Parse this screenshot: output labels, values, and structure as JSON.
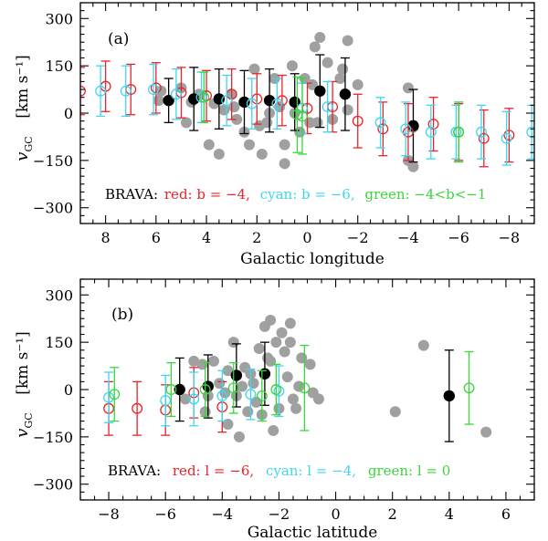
{
  "colors": {
    "red": "#e8242a",
    "cyan": "#3fd6f0",
    "green": "#3ad63a",
    "black": "#000000",
    "gray": "#a0a0a0"
  },
  "chart_data": [
    {
      "type": "scatter",
      "panel_label": "(a)",
      "xlabel": "Galactic longitude",
      "ylabel_main": "v",
      "ylabel_sub": "GC",
      "ylabel_units": "[km s⁻¹]",
      "xlim": [
        9,
        -9
      ],
      "ylim": [
        -350,
        350
      ],
      "xticks": [
        8,
        6,
        4,
        2,
        0,
        -2,
        -4,
        -6,
        -8
      ],
      "xticklabels": [
        "8",
        "6",
        "4",
        "2",
        "0",
        "−2",
        "−4",
        "−6",
        "−8"
      ],
      "yticks": [
        300,
        150,
        0,
        -150,
        -300
      ],
      "yticklabels": [
        "300",
        "150",
        "0",
        "−150",
        "−300"
      ],
      "legend_prefix": "BRAVA:",
      "legend_items": [
        {
          "color": "red",
          "text": "red: b = −4,"
        },
        {
          "color": "cyan",
          "text": "cyan: b = −6,"
        },
        {
          "color": "green",
          "text": "green: −4<b<−1"
        }
      ],
      "series": [
        {
          "name": "BRAVA b=-4",
          "color": "red",
          "marker": "open-circle",
          "points": [
            [
              9.0,
              70,
              75
            ],
            [
              8.0,
              85,
              80
            ],
            [
              7.0,
              75,
              80
            ],
            [
              6.0,
              80,
              80
            ],
            [
              5.0,
              65,
              80
            ],
            [
              4.0,
              55,
              80
            ],
            [
              3.0,
              60,
              80
            ],
            [
              2.0,
              45,
              80
            ],
            [
              1.0,
              40,
              80
            ],
            [
              0.0,
              15,
              80
            ],
            [
              -1.0,
              20,
              80
            ],
            [
              -2.0,
              -25,
              85
            ],
            [
              -3.0,
              -50,
              85
            ],
            [
              -4.0,
              -60,
              90
            ],
            [
              -5.0,
              -35,
              85
            ],
            [
              -6.0,
              -60,
              90
            ],
            [
              -7.0,
              -80,
              90
            ],
            [
              -8.0,
              -70,
              85
            ]
          ]
        },
        {
          "name": "BRAVA b=-6",
          "color": "cyan",
          "marker": "open-circle",
          "points": [
            [
              8.2,
              70,
              80
            ],
            [
              7.2,
              70,
              80
            ],
            [
              6.1,
              75,
              80
            ],
            [
              5.2,
              60,
              80
            ],
            [
              4.2,
              50,
              80
            ],
            [
              3.2,
              40,
              80
            ],
            [
              2.2,
              30,
              80
            ],
            [
              1.2,
              30,
              80
            ],
            [
              0.2,
              15,
              80
            ],
            [
              -0.8,
              20,
              80
            ],
            [
              -2.9,
              -30,
              80
            ],
            [
              -3.9,
              -50,
              85
            ],
            [
              -4.9,
              -60,
              85
            ],
            [
              -5.9,
              -60,
              85
            ],
            [
              -6.9,
              -60,
              85
            ],
            [
              -7.9,
              -80,
              85
            ],
            [
              -8.9,
              -60,
              85
            ]
          ]
        },
        {
          "name": "BRAVA -4<b<-1",
          "color": "green",
          "marker": "open-circle",
          "points": [
            [
              4.1,
              50,
              80
            ],
            [
              0.2,
              -10,
              120
            ],
            [
              0.4,
              -5,
              120
            ],
            [
              -6.0,
              -60,
              95
            ]
          ]
        },
        {
          "name": "Black",
          "color": "black",
          "marker": "filled-circle",
          "points": [
            [
              5.5,
              40,
              70
            ],
            [
              4.5,
              45,
              100
            ],
            [
              3.5,
              45,
              95
            ],
            [
              2.5,
              35,
              100
            ],
            [
              1.5,
              40,
              100
            ],
            [
              0.5,
              35,
              90
            ],
            [
              -0.5,
              70,
              115
            ],
            [
              -1.5,
              60,
              115
            ],
            [
              -4.2,
              -40,
              115
            ]
          ]
        },
        {
          "name": "Gray",
          "color": "gray",
          "marker": "filled-circle",
          "points": [
            [
              5.8,
              70
            ],
            [
              5.9,
              40
            ],
            [
              5.0,
              80
            ],
            [
              4.8,
              -30
            ],
            [
              4.6,
              35
            ],
            [
              4.3,
              60
            ],
            [
              3.9,
              -100
            ],
            [
              3.7,
              30
            ],
            [
              3.5,
              -130
            ],
            [
              3.3,
              10
            ],
            [
              3.0,
              60
            ],
            [
              2.9,
              20
            ],
            [
              2.8,
              -20
            ],
            [
              2.5,
              -60
            ],
            [
              2.3,
              -100
            ],
            [
              2.1,
              140
            ],
            [
              1.9,
              -40
            ],
            [
              1.8,
              -130
            ],
            [
              1.6,
              -30
            ],
            [
              1.5,
              0
            ],
            [
              1.3,
              110
            ],
            [
              1.1,
              20
            ],
            [
              0.9,
              -100
            ],
            [
              0.9,
              -160
            ],
            [
              0.6,
              150
            ],
            [
              0.5,
              0
            ],
            [
              0.3,
              -60
            ],
            [
              0.1,
              110
            ],
            [
              -0.1,
              -30
            ],
            [
              -0.2,
              90
            ],
            [
              -0.3,
              210
            ],
            [
              -0.4,
              -30
            ],
            [
              -0.5,
              240
            ],
            [
              -0.8,
              160
            ],
            [
              -1.0,
              -20
            ],
            [
              -1.3,
              110
            ],
            [
              -1.4,
              140
            ],
            [
              -1.6,
              10
            ],
            [
              -1.6,
              230
            ],
            [
              -2.0,
              90
            ],
            [
              -4.0,
              -150
            ],
            [
              -4.2,
              -170
            ],
            [
              -4.0,
              80
            ],
            [
              -4.2,
              -45
            ]
          ]
        }
      ]
    },
    {
      "type": "scatter",
      "panel_label": "(b)",
      "xlabel": "Galactic latitude",
      "ylabel_main": "v",
      "ylabel_sub": "GC",
      "ylabel_units": "[km s⁻¹]",
      "xlim": [
        -9,
        7
      ],
      "ylim": [
        -350,
        350
      ],
      "xticks": [
        -8,
        -6,
        -4,
        -2,
        0,
        2,
        4,
        6
      ],
      "xticklabels": [
        "−8",
        "−6",
        "−4",
        "−2",
        "0",
        "2",
        "4",
        "6"
      ],
      "yticks": [
        300,
        150,
        0,
        -150,
        -300
      ],
      "yticklabels": [
        "300",
        "150",
        "0",
        "−150",
        "−300"
      ],
      "legend_prefix": "BRAVA:",
      "legend_items": [
        {
          "color": "red",
          "text": "red: l = −6,"
        },
        {
          "color": "cyan",
          "text": "cyan: l = −4,"
        },
        {
          "color": "green",
          "text": "green: l = 0"
        }
      ],
      "series": [
        {
          "name": "BRAVA l=-6",
          "color": "red",
          "marker": "open-circle",
          "points": [
            [
              -8.0,
              -60,
              85
            ],
            [
              -7.0,
              -60,
              85
            ],
            [
              -6.0,
              -65,
              80
            ],
            [
              -5.0,
              -10,
              80
            ],
            [
              -4.0,
              -55,
              80
            ]
          ]
        },
        {
          "name": "BRAVA l=-4",
          "color": "cyan",
          "marker": "open-circle",
          "points": [
            [
              -8.0,
              -25,
              80
            ],
            [
              -6.0,
              -35,
              80
            ],
            [
              -5.0,
              -30,
              85
            ],
            [
              -4.0,
              -20,
              80
            ],
            [
              -3.0,
              -15,
              80
            ],
            [
              -2.0,
              -5,
              80
            ]
          ]
        },
        {
          "name": "BRAVA l=0",
          "color": "green",
          "marker": "open-circle",
          "points": [
            [
              -7.8,
              -15,
              85
            ],
            [
              -5.8,
              0,
              85
            ],
            [
              -4.6,
              0,
              85
            ],
            [
              -3.6,
              5,
              80
            ],
            [
              -2.6,
              -20,
              80
            ],
            [
              -2.1,
              0,
              80
            ],
            [
              -1.1,
              5,
              135
            ],
            [
              4.7,
              5,
              115
            ]
          ]
        },
        {
          "name": "Black",
          "color": "black",
          "marker": "filled-circle",
          "points": [
            [
              -5.5,
              0,
              100
            ],
            [
              -4.5,
              10,
              100
            ],
            [
              -3.5,
              45,
              100
            ],
            [
              -2.5,
              50,
              100
            ],
            [
              4.0,
              -20,
              145
            ]
          ]
        },
        {
          "name": "Gray",
          "color": "gray",
          "marker": "filled-circle",
          "points": [
            [
              -5.0,
              90
            ],
            [
              -4.7,
              80
            ],
            [
              -4.6,
              -70
            ],
            [
              -4.3,
              90
            ],
            [
              -4.1,
              20
            ],
            [
              -3.9,
              -10
            ],
            [
              -3.8,
              -110
            ],
            [
              -3.6,
              150
            ],
            [
              -3.5,
              -20
            ],
            [
              -3.4,
              -150
            ],
            [
              -3.3,
              10
            ],
            [
              -3.2,
              70
            ],
            [
              -3.1,
              -70
            ],
            [
              -3.0,
              50
            ],
            [
              -2.9,
              20
            ],
            [
              -2.8,
              -40
            ],
            [
              -2.7,
              130
            ],
            [
              -2.6,
              -80
            ],
            [
              -2.5,
              200
            ],
            [
              -2.4,
              100
            ],
            [
              -2.3,
              90
            ],
            [
              -2.3,
              220
            ],
            [
              -2.2,
              -130
            ],
            [
              -2.1,
              150
            ],
            [
              -2.0,
              -60
            ],
            [
              -1.9,
              180
            ],
            [
              -1.8,
              120
            ],
            [
              -1.7,
              40
            ],
            [
              -1.6,
              150
            ],
            [
              -1.5,
              -30
            ],
            [
              -1.4,
              -60
            ],
            [
              -1.3,
              10
            ],
            [
              -1.2,
              100
            ],
            [
              -0.9,
              80
            ],
            [
              -0.8,
              -10
            ],
            [
              -0.6,
              -30
            ],
            [
              -1.6,
              210
            ],
            [
              2.1,
              -70
            ],
            [
              3.1,
              140
            ],
            [
              5.3,
              -135
            ],
            [
              -4.5,
              -20
            ],
            [
              -3.8,
              60
            ],
            [
              -5.3,
              -30
            ]
          ]
        }
      ]
    }
  ]
}
